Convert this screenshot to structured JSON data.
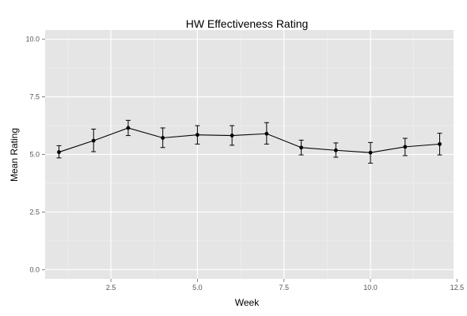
{
  "chart_data": {
    "type": "line",
    "title": "HW Effectiveness Rating",
    "xlabel": "Week",
    "ylabel": "Mean Rating",
    "xlim": [
      0.6,
      12.4
    ],
    "ylim": [
      -0.4,
      10.4
    ],
    "x_ticks": [
      2.5,
      5.0,
      7.5,
      10.0,
      12.5
    ],
    "x_tick_labels": [
      "2.5",
      "5.0",
      "7.5",
      "10.0",
      "12.5"
    ],
    "y_ticks": [
      0.0,
      2.5,
      5.0,
      7.5,
      10.0
    ],
    "y_tick_labels": [
      "0.0",
      "2.5",
      "5.0",
      "7.5",
      "10.0"
    ],
    "grid": true,
    "legend": "none",
    "colors": {
      "panel": "#e5e5e5",
      "grid_major": "#ffffff",
      "grid_minor": "#f0f0f0",
      "line": "#000000"
    },
    "series": [
      {
        "x": [
          1,
          2,
          3,
          4,
          5,
          6,
          7,
          8,
          9,
          10,
          11,
          12
        ],
        "y": [
          5.1,
          5.6,
          6.15,
          5.72,
          5.85,
          5.82,
          5.9,
          5.3,
          5.18,
          5.08,
          5.33,
          5.45
        ],
        "ymin": [
          4.85,
          5.12,
          5.82,
          5.3,
          5.45,
          5.4,
          5.45,
          4.98,
          4.88,
          4.62,
          4.95,
          4.98
        ],
        "ymax": [
          5.38,
          6.1,
          6.48,
          6.15,
          6.25,
          6.25,
          6.38,
          5.62,
          5.5,
          5.52,
          5.7,
          5.92
        ]
      }
    ]
  }
}
